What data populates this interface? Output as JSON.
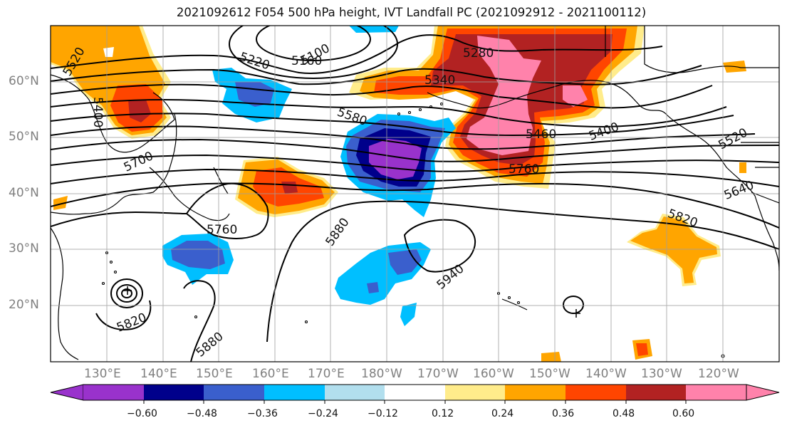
{
  "title": "2021092612 F054 500 hPa height, IVT Landfall PC (2021092912 - 2021100112)",
  "lat_labels": [
    "60°N",
    "50°N",
    "40°N",
    "30°N",
    "20°N"
  ],
  "lon_labels": [
    "130°E",
    "140°E",
    "150°E",
    "160°E",
    "170°E",
    "180°W",
    "170°W",
    "160°W",
    "150°W",
    "140°W",
    "130°W",
    "120°W"
  ],
  "contour_labels": [
    "5520",
    "5400",
    "5700",
    "5220",
    "5160",
    "5100",
    "5280",
    "5340",
    "5580",
    "5460",
    "5400",
    "5520",
    "5760",
    "5640",
    "5880",
    "5760",
    "5940",
    "5820",
    "5820",
    "5880"
  ],
  "colorbar": {
    "colors": [
      "#9932CC",
      "#00008B",
      "#3A5FCD",
      "#00BFFF",
      "#B2DFEE",
      "#FFFFFF",
      "#FFFFFF",
      "#FFEC8B",
      "#FFA500",
      "#FF4500",
      "#B22222",
      "#FF82AB"
    ],
    "under_color": "#9932CC",
    "over_color": "#FF82AB",
    "tick_labels": [
      "−0.60",
      "−0.48",
      "−0.36",
      "−0.24",
      "−0.12",
      "0.12",
      "0.24",
      "0.36",
      "0.48",
      "0.60"
    ]
  }
}
